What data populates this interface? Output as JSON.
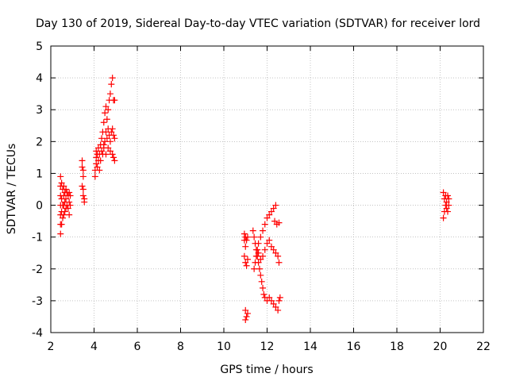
{
  "chart_data": {
    "type": "scatter",
    "title": "Day 130 of 2019, Sidereal Day-to-day VTEC variation (SDTVAR) for receiver lord",
    "xlabel": "GPS time / hours",
    "ylabel": "SDTVAR / TECUs",
    "xlim": [
      2,
      22
    ],
    "ylim": [
      -4,
      5
    ],
    "x_ticks": [
      2,
      4,
      6,
      8,
      10,
      12,
      14,
      16,
      18,
      20,
      22
    ],
    "y_ticks": [
      -4,
      -3,
      -2,
      -1,
      0,
      1,
      2,
      3,
      4,
      5
    ],
    "grid": true,
    "legend": "none",
    "colors": {
      "points": "#ff0000",
      "grid": "#a0a0a0",
      "axes": "#000000"
    },
    "marker": "plus",
    "series": [
      {
        "name": "SDTVAR",
        "points": [
          [
            2.45,
            0.9
          ],
          [
            2.45,
            0.6
          ],
          [
            2.45,
            0.3
          ],
          [
            2.45,
            0.0
          ],
          [
            2.45,
            -0.3
          ],
          [
            2.45,
            -0.6
          ],
          [
            2.45,
            -0.9
          ],
          [
            2.5,
            0.7
          ],
          [
            2.5,
            0.2
          ],
          [
            2.5,
            -0.2
          ],
          [
            2.5,
            -0.6
          ],
          [
            2.55,
            0.5
          ],
          [
            2.55,
            0.0
          ],
          [
            2.55,
            -0.4
          ],
          [
            2.6,
            0.6
          ],
          [
            2.6,
            0.3
          ],
          [
            2.6,
            0.0
          ],
          [
            2.6,
            -0.3
          ],
          [
            2.65,
            0.4
          ],
          [
            2.65,
            0.1
          ],
          [
            2.65,
            -0.2
          ],
          [
            2.7,
            0.5
          ],
          [
            2.7,
            0.2
          ],
          [
            2.7,
            -0.1
          ],
          [
            2.75,
            0.4
          ],
          [
            2.75,
            0.0
          ],
          [
            2.8,
            0.3
          ],
          [
            2.8,
            -0.1
          ],
          [
            2.85,
            0.4
          ],
          [
            2.85,
            0.1
          ],
          [
            2.85,
            -0.3
          ],
          [
            2.9,
            0.3
          ],
          [
            2.9,
            0.0
          ],
          [
            3.45,
            1.4
          ],
          [
            3.45,
            1.2
          ],
          [
            3.5,
            1.1
          ],
          [
            3.5,
            0.9
          ],
          [
            3.45,
            0.6
          ],
          [
            3.5,
            0.5
          ],
          [
            3.5,
            0.3
          ],
          [
            3.55,
            0.2
          ],
          [
            3.55,
            0.1
          ],
          [
            4.05,
            0.9
          ],
          [
            4.05,
            1.1
          ],
          [
            4.1,
            1.3
          ],
          [
            4.1,
            1.5
          ],
          [
            4.1,
            1.7
          ],
          [
            4.15,
            1.2
          ],
          [
            4.15,
            1.6
          ],
          [
            4.2,
            1.4
          ],
          [
            4.2,
            1.8
          ],
          [
            4.25,
            1.1
          ],
          [
            4.25,
            1.6
          ],
          [
            4.3,
            1.9
          ],
          [
            4.3,
            1.4
          ],
          [
            4.35,
            1.7
          ],
          [
            4.35,
            2.1
          ],
          [
            4.4,
            1.6
          ],
          [
            4.4,
            2.3
          ],
          [
            4.45,
            1.9
          ],
          [
            4.45,
            2.6
          ],
          [
            4.5,
            2.0
          ],
          [
            4.5,
            2.9
          ],
          [
            4.55,
            2.3
          ],
          [
            4.55,
            3.1
          ],
          [
            4.6,
            2.1
          ],
          [
            4.6,
            2.7
          ],
          [
            4.65,
            3.0
          ],
          [
            4.65,
            2.4
          ],
          [
            4.7,
            3.3
          ],
          [
            4.7,
            2.2
          ],
          [
            4.75,
            3.5
          ],
          [
            4.75,
            2.0
          ],
          [
            4.8,
            3.8
          ],
          [
            4.8,
            2.3
          ],
          [
            4.85,
            4.0
          ],
          [
            4.85,
            2.4
          ],
          [
            4.85,
            1.6
          ],
          [
            4.9,
            3.3
          ],
          [
            4.9,
            2.2
          ],
          [
            4.9,
            1.5
          ],
          [
            4.95,
            3.3
          ],
          [
            4.95,
            2.1
          ],
          [
            4.95,
            1.4
          ],
          [
            4.45,
            1.8
          ],
          [
            4.55,
            1.6
          ],
          [
            4.65,
            1.8
          ],
          [
            4.75,
            1.7
          ],
          [
            10.95,
            -0.9
          ],
          [
            10.95,
            -1.1
          ],
          [
            11.0,
            -1.3
          ],
          [
            11.0,
            -1.0
          ],
          [
            11.05,
            -1.1
          ],
          [
            11.1,
            -1.0
          ],
          [
            10.95,
            -1.6
          ],
          [
            11.0,
            -1.8
          ],
          [
            11.05,
            -1.9
          ],
          [
            11.1,
            -1.7
          ],
          [
            11.0,
            -3.3
          ],
          [
            11.05,
            -3.5
          ],
          [
            11.1,
            -3.4
          ],
          [
            11.0,
            -3.6
          ],
          [
            11.35,
            -0.8
          ],
          [
            11.4,
            -1.0
          ],
          [
            11.45,
            -1.2
          ],
          [
            11.5,
            -1.4
          ],
          [
            11.55,
            -1.6
          ],
          [
            11.6,
            -1.8
          ],
          [
            11.65,
            -2.0
          ],
          [
            11.7,
            -2.2
          ],
          [
            11.75,
            -2.4
          ],
          [
            11.8,
            -2.6
          ],
          [
            11.85,
            -2.8
          ],
          [
            11.9,
            -2.9
          ],
          [
            12.0,
            -3.0
          ],
          [
            12.1,
            -2.9
          ],
          [
            12.2,
            -3.0
          ],
          [
            12.3,
            -3.1
          ],
          [
            12.4,
            -3.2
          ],
          [
            12.5,
            -3.3
          ],
          [
            12.55,
            -3.0
          ],
          [
            12.6,
            -2.9
          ],
          [
            11.4,
            -2.0
          ],
          [
            11.45,
            -1.8
          ],
          [
            11.5,
            -1.6
          ],
          [
            11.55,
            -1.4
          ],
          [
            11.6,
            -1.2
          ],
          [
            11.7,
            -1.0
          ],
          [
            11.8,
            -0.8
          ],
          [
            11.9,
            -0.6
          ],
          [
            12.0,
            -0.4
          ],
          [
            12.1,
            -0.3
          ],
          [
            12.2,
            -0.2
          ],
          [
            12.3,
            -0.1
          ],
          [
            12.4,
            0.0
          ],
          [
            11.6,
            -1.5
          ],
          [
            11.7,
            -1.7
          ],
          [
            11.8,
            -1.6
          ],
          [
            11.9,
            -1.4
          ],
          [
            12.0,
            -1.2
          ],
          [
            12.1,
            -1.1
          ],
          [
            12.2,
            -1.3
          ],
          [
            12.3,
            -1.4
          ],
          [
            12.4,
            -1.5
          ],
          [
            12.5,
            -1.6
          ],
          [
            12.55,
            -1.8
          ],
          [
            12.35,
            -0.5
          ],
          [
            12.45,
            -0.6
          ],
          [
            12.55,
            -0.55
          ],
          [
            20.15,
            0.4
          ],
          [
            20.15,
            -0.4
          ],
          [
            20.2,
            0.2
          ],
          [
            20.2,
            -0.2
          ],
          [
            20.25,
            0.3
          ],
          [
            20.25,
            0.0
          ],
          [
            20.3,
            0.1
          ],
          [
            20.3,
            -0.1
          ],
          [
            20.35,
            0.3
          ],
          [
            20.35,
            -0.2
          ],
          [
            20.4,
            0.2
          ],
          [
            20.4,
            0.0
          ]
        ]
      }
    ]
  }
}
